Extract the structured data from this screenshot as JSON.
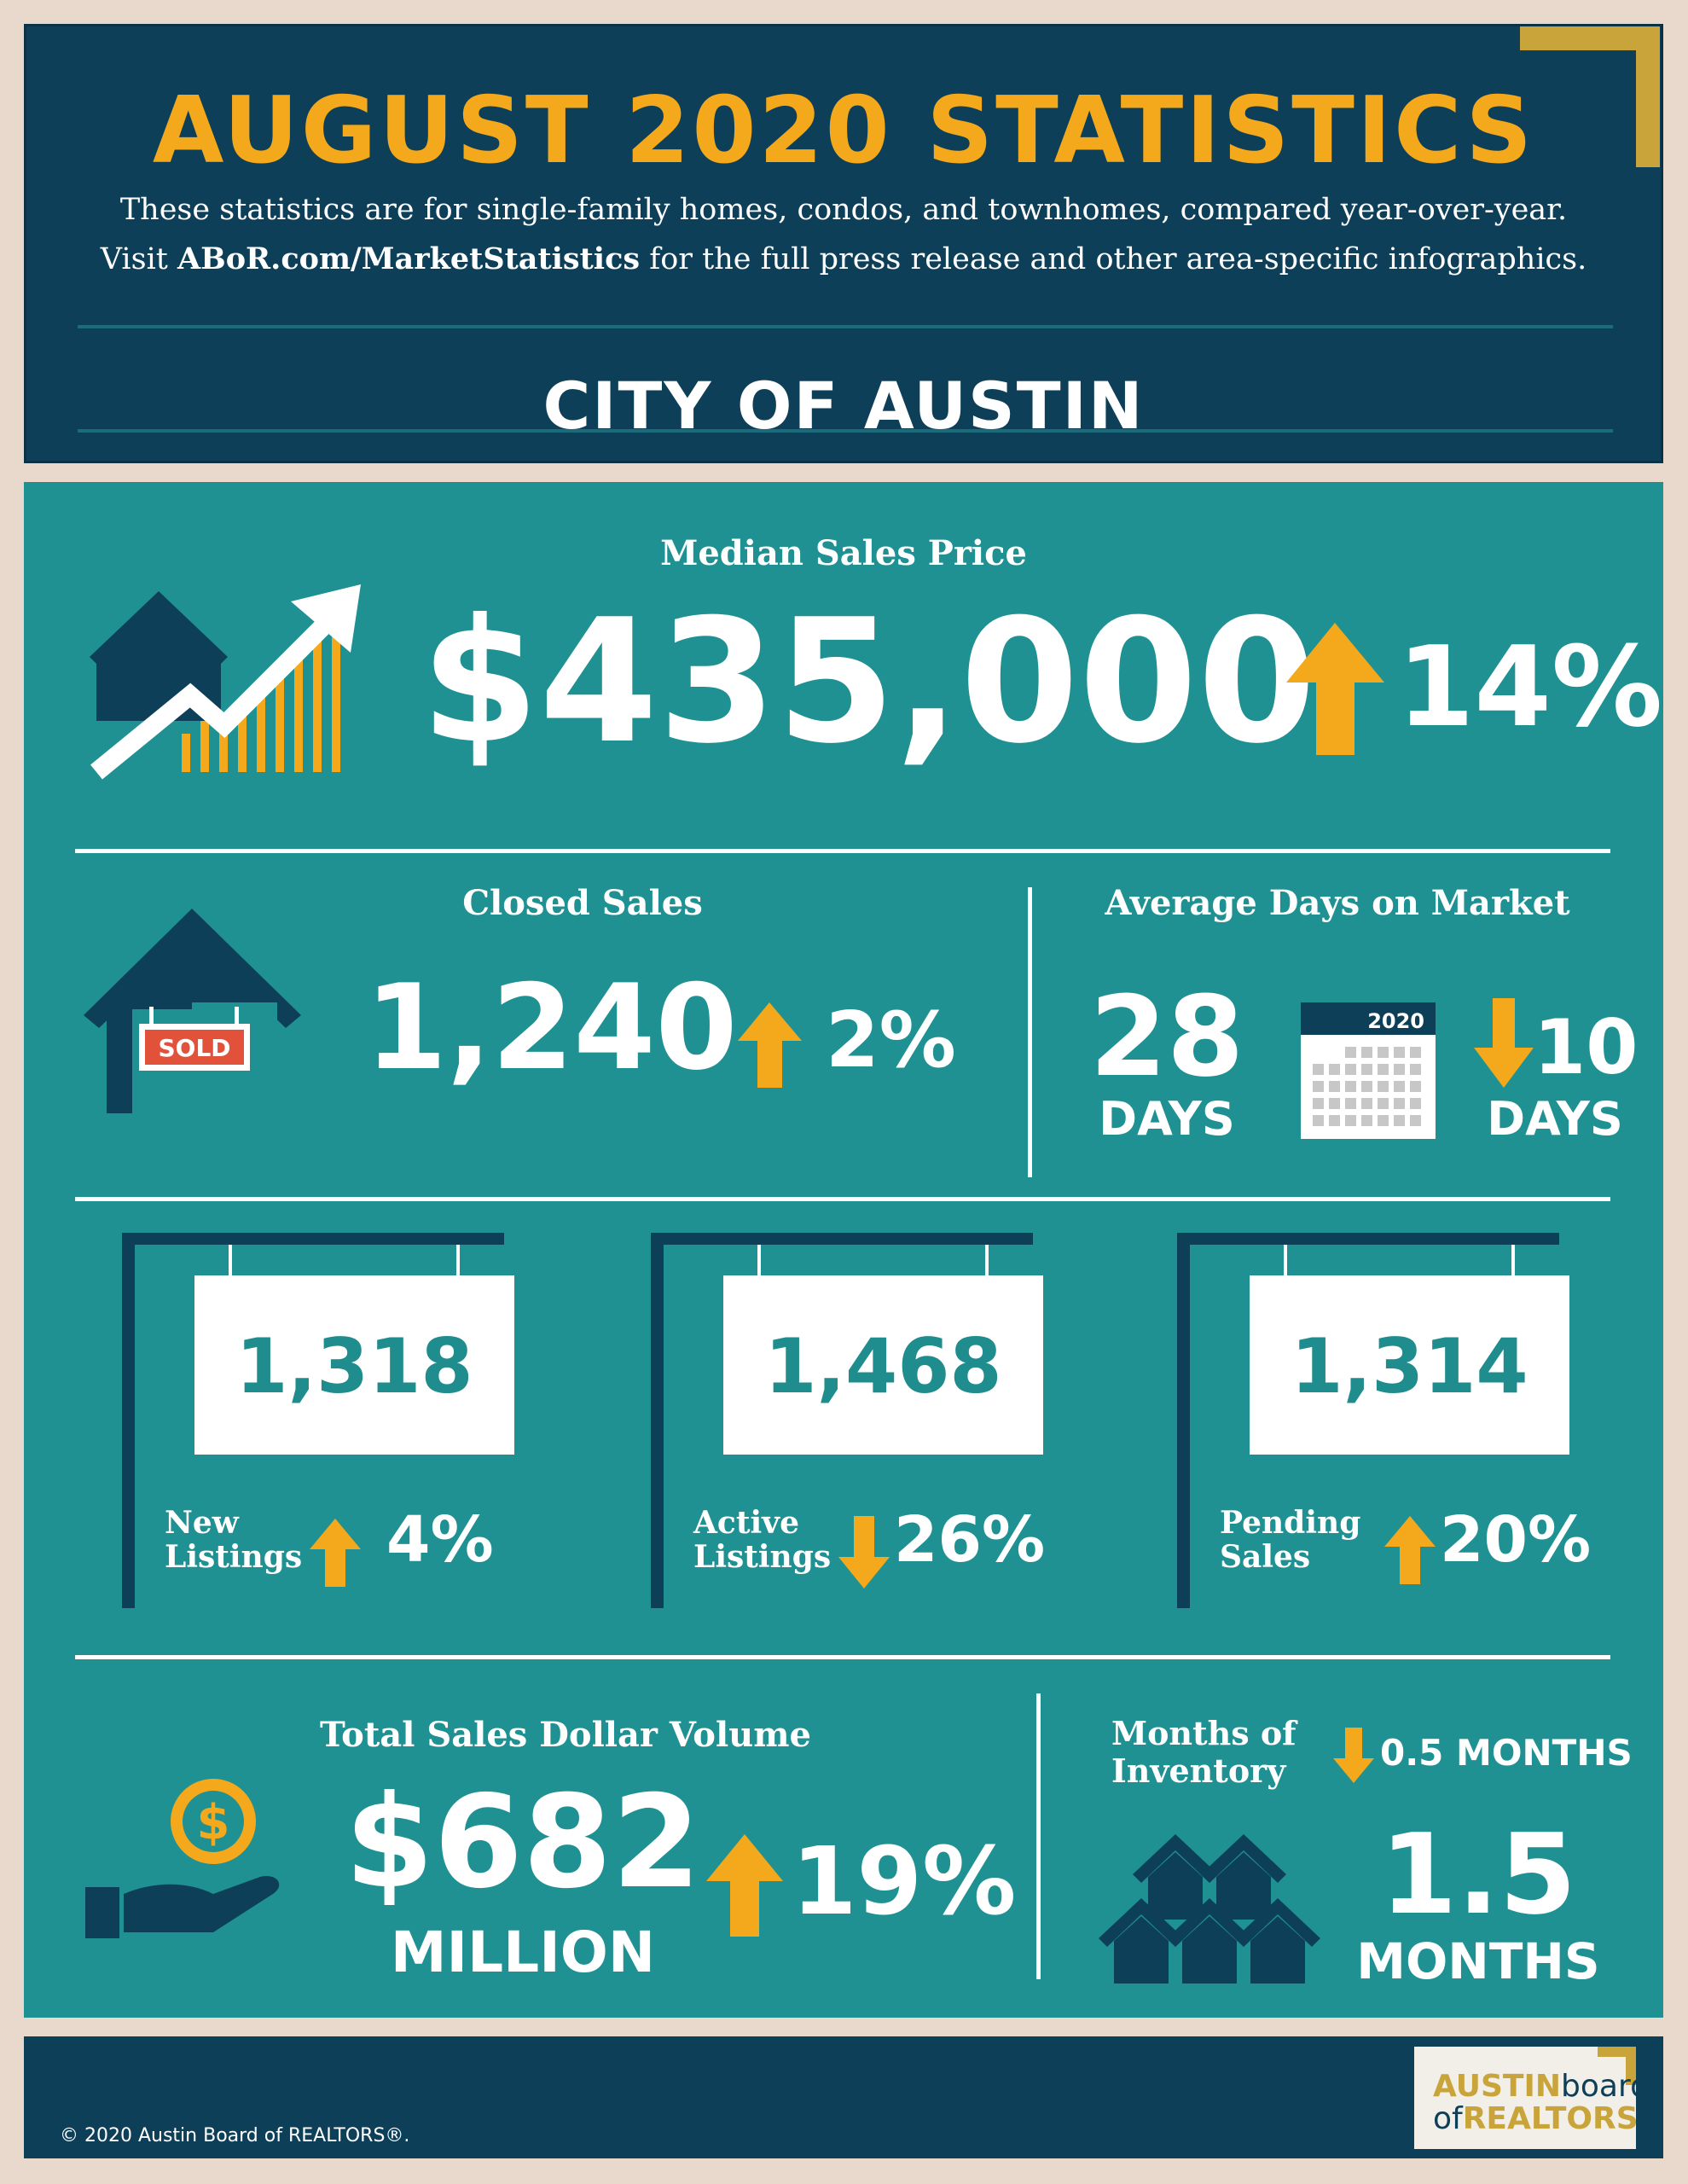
{
  "header": {
    "title": "AUGUST 2020 STATISTICS",
    "subtitle_line1": "These statistics are for single-family homes, condos, and townhomes, compared year-over-year.",
    "subtitle_line2_pre": "Visit ",
    "subtitle_line2_link": "ABoR.com/MarketStatistics",
    "subtitle_line2_post": " for the full press release and other area-specific infographics.",
    "area": "CITY OF AUSTIN"
  },
  "median_sales_price": {
    "label": "Median Sales Price",
    "value": "$435,000",
    "change": "14%",
    "direction": "up"
  },
  "closed_sales": {
    "label": "Closed Sales",
    "value": "1,240",
    "change": "2%",
    "direction": "up",
    "sign_text": "SOLD"
  },
  "days_on_market": {
    "label": "Average Days on Market",
    "value": "28",
    "unit": "DAYS",
    "calendar_year": "2020",
    "change": "10",
    "change_unit": "DAYS",
    "direction": "down"
  },
  "new_listings": {
    "value": "1,318",
    "label_line1": "New",
    "label_line2": "Listings",
    "change": "4%",
    "direction": "up"
  },
  "active_listings": {
    "value": "1,468",
    "label_line1": "Active",
    "label_line2": "Listings",
    "change": "26%",
    "direction": "down"
  },
  "pending_sales": {
    "value": "1,314",
    "label_line1": "Pending",
    "label_line2": "Sales",
    "change": "20%",
    "direction": "up"
  },
  "total_volume": {
    "label": "Total Sales Dollar Volume",
    "value": "$682",
    "unit": "MILLION",
    "change": "19%",
    "direction": "up"
  },
  "months_inventory": {
    "label_line1": "Months of",
    "label_line2": "Inventory",
    "change": "0.5 MONTHS",
    "direction": "down",
    "value": "1.5",
    "unit": "MONTHS"
  },
  "footer": {
    "copyright": "© 2020 Austin Board of REALTORS®.",
    "logo_line1a": "AUSTIN",
    "logo_line1b": "board",
    "logo_line2a": "of",
    "logo_line2b": "REALTORS"
  },
  "colors": {
    "navy": "#0e3f58",
    "teal": "#1f9192",
    "gold": "#f4a91c",
    "white": "#ffffff",
    "red": "#e2513a"
  }
}
